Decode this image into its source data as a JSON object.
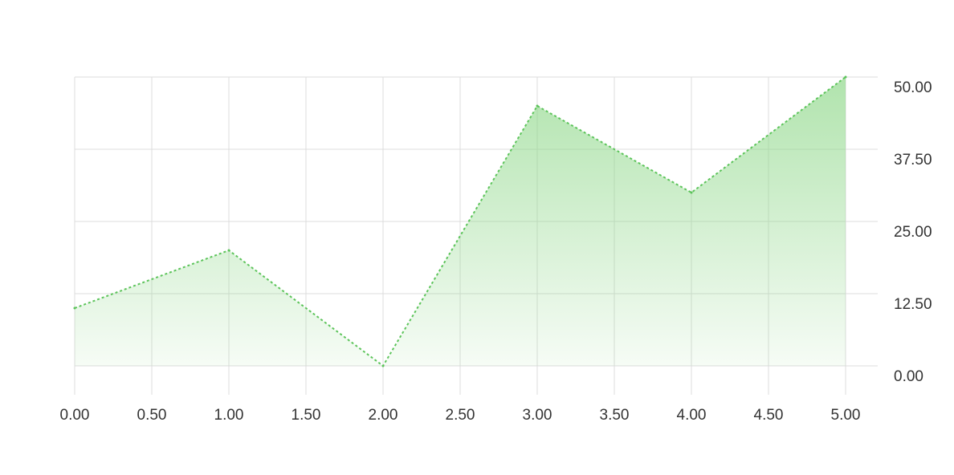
{
  "chart_data": {
    "type": "area",
    "title": "",
    "xlabel": "",
    "ylabel": "",
    "x": [
      0,
      1,
      2,
      3,
      4,
      5
    ],
    "series": [
      {
        "values": [
          10,
          20,
          0,
          45,
          30,
          50
        ]
      }
    ],
    "xlim": [
      0,
      5
    ],
    "ylim": [
      0,
      50
    ],
    "x_ticks": [
      "0.00",
      "0.50",
      "1.00",
      "1.50",
      "2.00",
      "2.50",
      "3.00",
      "3.50",
      "4.00",
      "4.50",
      "5.00"
    ],
    "y_ticks": [
      "0.00",
      "12.50",
      "25.00",
      "37.50",
      "50.00"
    ],
    "y_axis_position": "right",
    "grid": true,
    "line_style": "dotted",
    "line_color": "#5cc45a",
    "fill_color": "#8fd88a"
  }
}
